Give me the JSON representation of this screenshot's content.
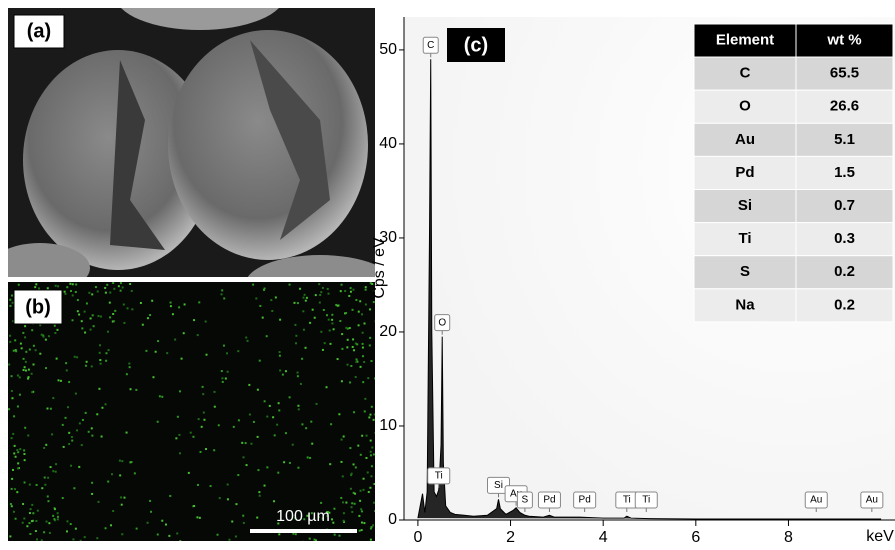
{
  "panels": {
    "a": {
      "label": "(a)"
    },
    "b": {
      "label": "(b)",
      "scale_bar": "100 µm"
    }
  },
  "chart_data": {
    "type": "line",
    "label": "(c)",
    "y_label": "Cps / eV",
    "x_label": "keV",
    "xlim": [
      -0.3,
      10.3
    ],
    "ylim": [
      0,
      53.5
    ],
    "xticks": [
      0,
      2,
      4,
      6,
      8
    ],
    "yticks": [
      0,
      10,
      20,
      30,
      40,
      50
    ],
    "color": "#000000",
    "x": [
      0.0,
      0.05,
      0.1,
      0.15,
      0.2,
      0.25,
      0.277,
      0.3,
      0.35,
      0.4,
      0.45,
      0.5,
      0.525,
      0.55,
      0.6,
      0.7,
      0.8,
      1.0,
      1.2,
      1.5,
      1.7,
      1.74,
      1.78,
      1.9,
      2.05,
      2.12,
      2.2,
      2.31,
      2.4,
      2.7,
      2.84,
      2.95,
      3.5,
      4.0,
      4.45,
      4.51,
      4.6,
      5.0,
      6.0,
      7.0,
      8.0,
      9.0,
      10.0
    ],
    "values": [
      0.2,
      1.5,
      2.8,
      0.8,
      3,
      30,
      49,
      20,
      3,
      2.5,
      3.2,
      8,
      19.5,
      6,
      1.5,
      0.8,
      0.6,
      0.5,
      0.4,
      0.5,
      1.2,
      2.2,
      1.2,
      0.6,
      1,
      1.3,
      0.8,
      0.5,
      0.4,
      0.3,
      0.5,
      0.3,
      0.3,
      0.2,
      0.2,
      0.4,
      0.2,
      0.15,
      0.1,
      0.1,
      0.1,
      0.1,
      0.1
    ],
    "peaks": [
      {
        "label": "C",
        "energy": 0.277
      },
      {
        "label": "O",
        "energy": 0.525
      },
      {
        "label": "Ti",
        "energy": 0.45
      },
      {
        "label": "Si",
        "energy": 1.74
      },
      {
        "label": "Au",
        "energy": 2.12
      },
      {
        "label": "S",
        "energy": 2.31
      },
      {
        "label": "Pd",
        "energy": 2.84
      },
      {
        "label": "Pd",
        "energy": 3.6
      },
      {
        "label": "Ti",
        "energy": 4.51
      },
      {
        "label": "Ti",
        "energy": 4.93
      },
      {
        "label": "Au",
        "energy": 8.6
      },
      {
        "label": "Au",
        "energy": 9.8
      }
    ],
    "table": {
      "header": [
        "Element",
        "wt %"
      ],
      "rows": [
        [
          "C",
          "65.5"
        ],
        [
          "O",
          "26.6"
        ],
        [
          "Au",
          "5.1"
        ],
        [
          "Pd",
          "1.5"
        ],
        [
          "Si",
          "0.7"
        ],
        [
          "Ti",
          "0.3"
        ],
        [
          "S",
          "0.2"
        ],
        [
          "Na",
          "0.2"
        ]
      ]
    }
  }
}
